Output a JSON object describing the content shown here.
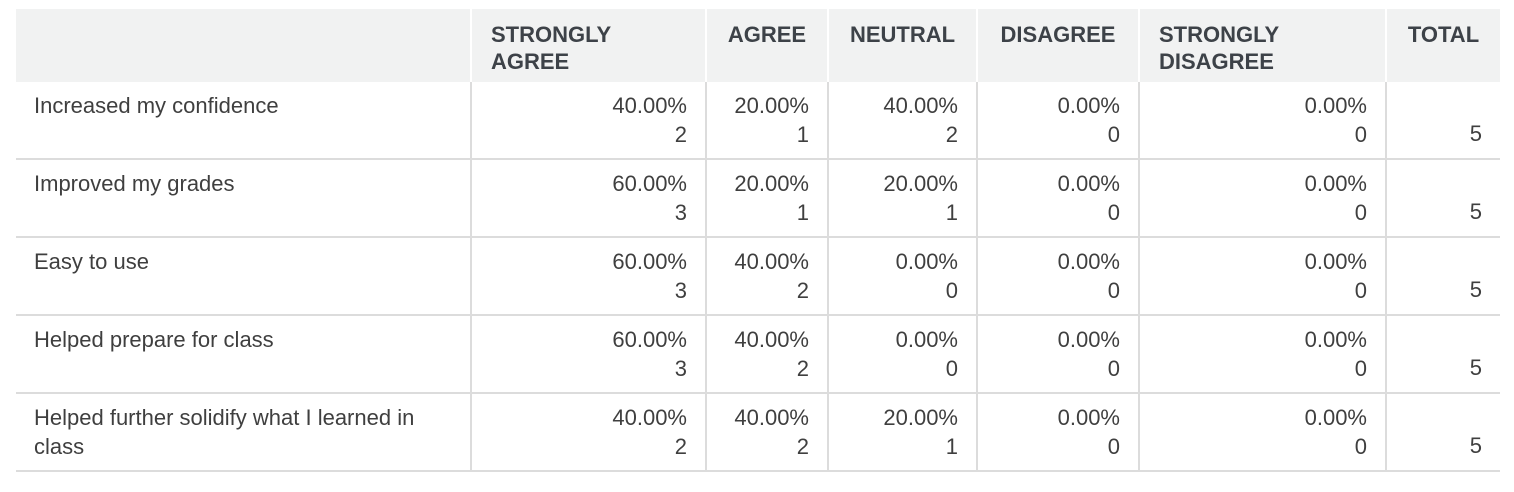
{
  "chart_data": {
    "type": "table",
    "columns": [
      "",
      "STRONGLY AGREE",
      "AGREE",
      "NEUTRAL",
      "DISAGREE",
      "STRONGLY DISAGREE",
      "TOTAL"
    ],
    "rows": [
      {
        "label": "Increased my confidence",
        "cells": [
          {
            "pct": "40.00%",
            "count": "2"
          },
          {
            "pct": "20.00%",
            "count": "1"
          },
          {
            "pct": "40.00%",
            "count": "2"
          },
          {
            "pct": "0.00%",
            "count": "0"
          },
          {
            "pct": "0.00%",
            "count": "0"
          }
        ],
        "total": "5"
      },
      {
        "label": "Improved my grades",
        "cells": [
          {
            "pct": "60.00%",
            "count": "3"
          },
          {
            "pct": "20.00%",
            "count": "1"
          },
          {
            "pct": "20.00%",
            "count": "1"
          },
          {
            "pct": "0.00%",
            "count": "0"
          },
          {
            "pct": "0.00%",
            "count": "0"
          }
        ],
        "total": "5"
      },
      {
        "label": "Easy to use",
        "cells": [
          {
            "pct": "60.00%",
            "count": "3"
          },
          {
            "pct": "40.00%",
            "count": "2"
          },
          {
            "pct": "0.00%",
            "count": "0"
          },
          {
            "pct": "0.00%",
            "count": "0"
          },
          {
            "pct": "0.00%",
            "count": "0"
          }
        ],
        "total": "5"
      },
      {
        "label": "Helped prepare for class",
        "cells": [
          {
            "pct": "60.00%",
            "count": "3"
          },
          {
            "pct": "40.00%",
            "count": "2"
          },
          {
            "pct": "0.00%",
            "count": "0"
          },
          {
            "pct": "0.00%",
            "count": "0"
          },
          {
            "pct": "0.00%",
            "count": "0"
          }
        ],
        "total": "5"
      },
      {
        "label": "Helped further solidify what I learned in class",
        "cells": [
          {
            "pct": "40.00%",
            "count": "2"
          },
          {
            "pct": "40.00%",
            "count": "2"
          },
          {
            "pct": "20.00%",
            "count": "1"
          },
          {
            "pct": "0.00%",
            "count": "0"
          },
          {
            "pct": "0.00%",
            "count": "0"
          }
        ],
        "total": "5"
      }
    ]
  }
}
